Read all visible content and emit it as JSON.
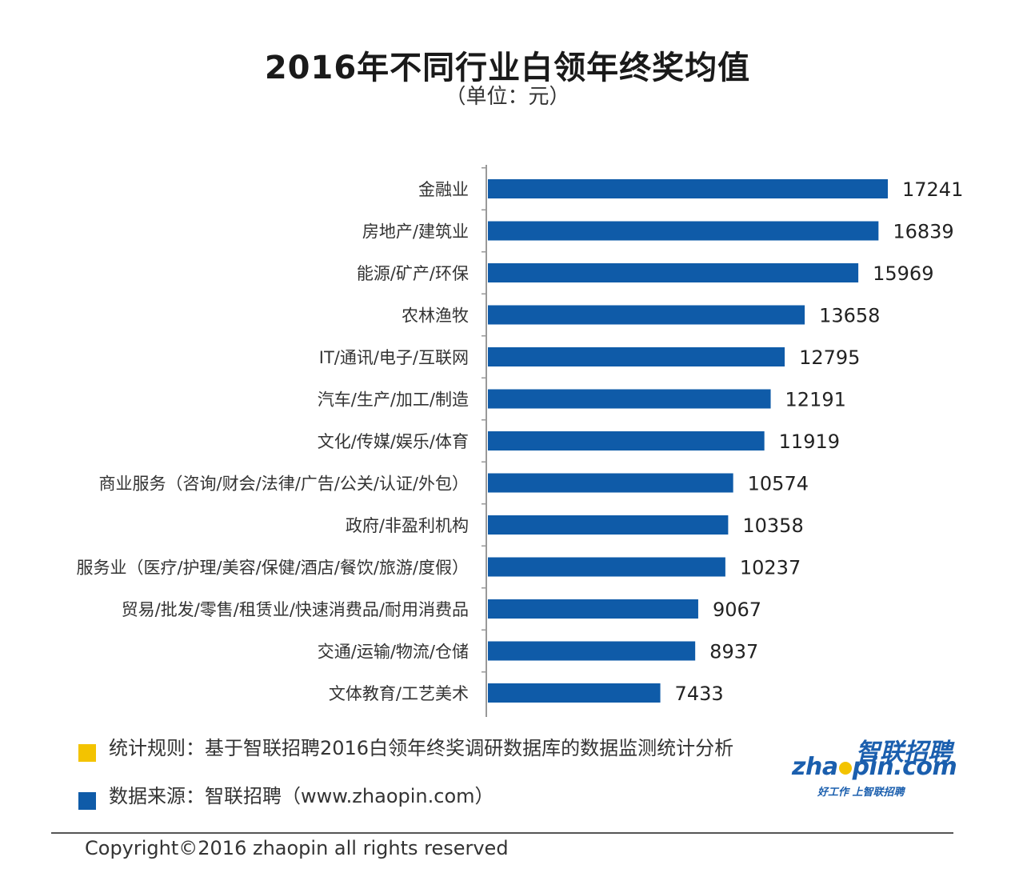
{
  "header": {
    "title": "2016年不同行业白领年终奖均值",
    "subtitle": "（单位：元）"
  },
  "chart_data": {
    "type": "bar",
    "orientation": "horizontal",
    "categories": [
      "金融业",
      "房地产/建筑业",
      "能源/矿产/环保",
      "农林渔牧",
      "IT/通讯/电子/互联网",
      "汽车/生产/加工/制造",
      "文化/传媒/娱乐/体育",
      "商业服务（咨询/财会/法律/广告/公关/认证/外包）",
      "政府/非盈利机构",
      "服务业（医疗/护理/美容/保健/酒店/餐饮/旅游/度假）",
      "贸易/批发/零售/租赁业/快速消费品/耐用消费品",
      "交通/运输/物流/仓储",
      "文体教育/工艺美术"
    ],
    "values": [
      17241,
      16839,
      15969,
      13658,
      12795,
      12191,
      11919,
      10574,
      10358,
      10237,
      9067,
      8937,
      7433
    ],
    "bar_color": "#0f5ba8",
    "xlim": [
      0,
      17241
    ],
    "grid": false,
    "data_labels": true
  },
  "notes": [
    {
      "text": "统计规则：基于智联招聘2016白领年终奖调研数据库的数据监测统计分析",
      "color": "#f3c300"
    },
    {
      "text": "数据来源：智联招聘（www.zhaopin.com）",
      "color": "#0f5ba8"
    }
  ],
  "logo": {
    "cn": "智联招聘",
    "en_left": "zha",
    "en_right": "pin.com",
    "tagline": "好工作 上智联招聘"
  },
  "footer": {
    "copyright": "Copyright©2016 zhaopin all rights reserved"
  }
}
